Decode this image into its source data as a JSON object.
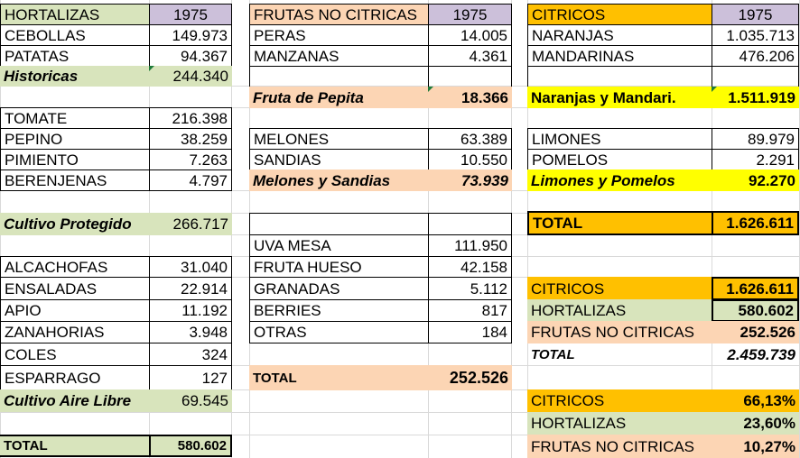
{
  "hortalizas": {
    "header": "HORTALIZAS",
    "year": "1975",
    "rows": [
      {
        "name": "CEBOLLAS",
        "value": "149.973"
      },
      {
        "name": "PATATAS",
        "value": "94.367"
      }
    ],
    "historicas": {
      "name": "Historicas",
      "value": "244.340"
    },
    "protegido_rows": [
      {
        "name": "TOMATE",
        "value": "216.398"
      },
      {
        "name": "PEPINO",
        "value": "38.259"
      },
      {
        "name": "PIMIENTO",
        "value": "7.263"
      },
      {
        "name": "BERENJENAS",
        "value": "4.797"
      }
    ],
    "protegido": {
      "name": "Cultivo Protegido",
      "value": "266.717"
    },
    "aire_rows": [
      {
        "name": "ALCACHOFAS",
        "value": "31.040"
      },
      {
        "name": "ENSALADAS",
        "value": "22.914"
      },
      {
        "name": "APIO",
        "value": "11.192"
      },
      {
        "name": "ZANAHORIAS",
        "value": "3.948"
      },
      {
        "name": "COLES",
        "value": "324"
      },
      {
        "name": "ESPARRAGO",
        "value": "127"
      }
    ],
    "aire": {
      "name": "Cultivo Aire  Libre",
      "value": "69.545"
    },
    "total": {
      "name": "TOTAL",
      "value": "580.602"
    }
  },
  "frutas": {
    "header": "FRUTAS NO CITRICAS",
    "year": "1975",
    "pepita_rows": [
      {
        "name": "PERAS",
        "value": "14.005"
      },
      {
        "name": "MANZANAS",
        "value": "4.361"
      }
    ],
    "pepita": {
      "name": "Fruta de Pepita",
      "value": "18.366"
    },
    "melon_rows": [
      {
        "name": "MELONES",
        "value": "63.389"
      },
      {
        "name": "SANDIAS",
        "value": "10.550"
      }
    ],
    "melon": {
      "name": "Melones y Sandias",
      "value": "73.939"
    },
    "otras_rows": [
      {
        "name": "UVA MESA",
        "value": "111.950"
      },
      {
        "name": "FRUTA HUESO",
        "value": "42.158"
      },
      {
        "name": "GRANADAS",
        "value": "5.112"
      },
      {
        "name": "BERRIES",
        "value": "817"
      },
      {
        "name": "OTRAS",
        "value": "184"
      }
    ],
    "total": {
      "name": "TOTAL",
      "value": "252.526"
    }
  },
  "citricos": {
    "header": "CITRICOS",
    "year": "1975",
    "naranja_rows": [
      {
        "name": "NARANJAS",
        "value": "1.035.713"
      },
      {
        "name": "MANDARINAS",
        "value": "476.206"
      }
    ],
    "naranja": {
      "name": "Naranjas y Mandari.",
      "value": "1.511.919"
    },
    "limon_rows": [
      {
        "name": "LIMONES",
        "value": "89.979"
      },
      {
        "name": "POMELOS",
        "value": "2.291"
      }
    ],
    "limon": {
      "name": "Limones y Pomelos",
      "value": "92.270"
    },
    "total": {
      "name": "TOTAL",
      "value": "1.626.611"
    }
  },
  "summary": {
    "rows": [
      {
        "name": "CITRICOS",
        "value": "1.626.611",
        "color": "#ffc000"
      },
      {
        "name": "HORTALIZAS",
        "value": "580.602",
        "color": "#d8e4bc"
      },
      {
        "name": "FRUTAS NO CITRICAS",
        "value": "252.526",
        "color": "#fcd5b4"
      }
    ],
    "total": {
      "name": "TOTAL",
      "value": "2.459.739"
    }
  },
  "percent": {
    "rows": [
      {
        "name": "CITRICOS",
        "value": "66,13%",
        "color": "#ffc000"
      },
      {
        "name": "HORTALIZAS",
        "value": "23,60%",
        "color": "#d8e4bc"
      },
      {
        "name": "FRUTAS NO CITRICAS",
        "value": "10,27%",
        "color": "#fcd5b4"
      }
    ]
  }
}
